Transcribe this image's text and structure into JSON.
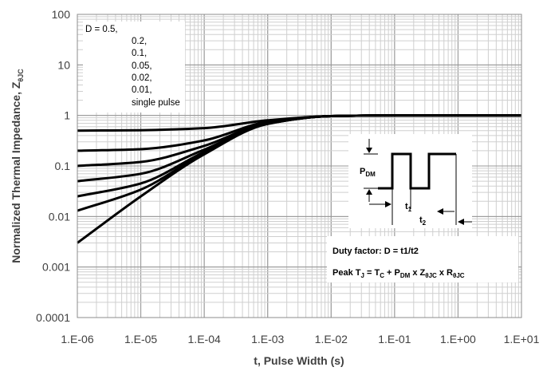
{
  "chart_data": {
    "type": "line",
    "xscale": "log",
    "yscale": "log",
    "xlim": [
      1e-06,
      10
    ],
    "ylim": [
      0.0001,
      100
    ],
    "grid": true,
    "xlabel": "t, Pulse Width (s)",
    "ylabel_main": "Normalized Thermal Impedance, Z",
    "ylabel_sub": "θJC",
    "x_tick_labels": [
      "1.E-06",
      "1.E-05",
      "1.E-04",
      "1.E-03",
      "1.E-02",
      "1.E-01",
      "1.E+00",
      "1.E+01"
    ],
    "y_tick_labels": [
      "0.0001",
      "0.001",
      "0.01",
      "0.1",
      "1",
      "10",
      "100"
    ],
    "legend_lines": [
      "D = 0.5,",
      "0.2,",
      "0.1,",
      "0.05,",
      "0.02,",
      "0.01,",
      "single pulse"
    ],
    "series": [
      {
        "x": [
          1e-06,
          1e-05,
          0.0001,
          0.001,
          0.01,
          0.1,
          1,
          10
        ],
        "y": [
          0.5,
          0.51,
          0.56,
          0.8,
          0.97,
          1.0,
          1.0,
          1.0
        ]
      },
      {
        "x": [
          1e-06,
          1e-05,
          0.0001,
          0.001,
          0.01,
          0.1,
          1,
          10
        ],
        "y": [
          0.2,
          0.215,
          0.32,
          0.75,
          0.97,
          1.0,
          1.0,
          1.0
        ]
      },
      {
        "x": [
          1e-06,
          1e-05,
          0.0001,
          0.001,
          0.01,
          0.1,
          1,
          10
        ],
        "y": [
          0.1,
          0.12,
          0.25,
          0.72,
          0.97,
          1.0,
          1.0,
          1.0
        ]
      },
      {
        "x": [
          1e-06,
          1e-05,
          0.0001,
          0.001,
          0.01,
          0.1,
          1,
          10
        ],
        "y": [
          0.05,
          0.07,
          0.21,
          0.7,
          0.97,
          1.0,
          1.0,
          1.0
        ]
      },
      {
        "x": [
          1e-06,
          1e-05,
          0.0001,
          0.001,
          0.01,
          0.1,
          1,
          10
        ],
        "y": [
          0.025,
          0.045,
          0.19,
          0.69,
          0.97,
          1.0,
          1.0,
          1.0
        ]
      },
      {
        "x": [
          1e-06,
          1e-05,
          0.0001,
          0.001,
          0.01,
          0.1,
          1,
          10
        ],
        "y": [
          0.013,
          0.034,
          0.18,
          0.68,
          0.97,
          1.0,
          1.0,
          1.0
        ]
      },
      {
        "x": [
          1e-06,
          1e-05,
          0.0001,
          0.001,
          0.01,
          0.1,
          1,
          10
        ],
        "y": [
          0.003,
          0.025,
          0.17,
          0.68,
          0.97,
          1.0,
          1.0,
          1.0
        ]
      }
    ],
    "inset": {
      "pdm_main": "P",
      "pdm_sub": "DM",
      "t1_main": "t",
      "t1_sub": "1",
      "t2_main": "t",
      "t2_sub": "2",
      "duty": "Duty factor: D = t1/t2",
      "peak_a": "Peak T",
      "peak_a_sub": "J",
      "peak_b": " = T",
      "peak_b_sub": "C",
      "peak_c": " + P",
      "peak_c_sub": "DM",
      "peak_d": " x Z",
      "peak_d_sub": "θJC",
      "peak_e": " x R",
      "peak_e_sub": "θJC"
    }
  }
}
